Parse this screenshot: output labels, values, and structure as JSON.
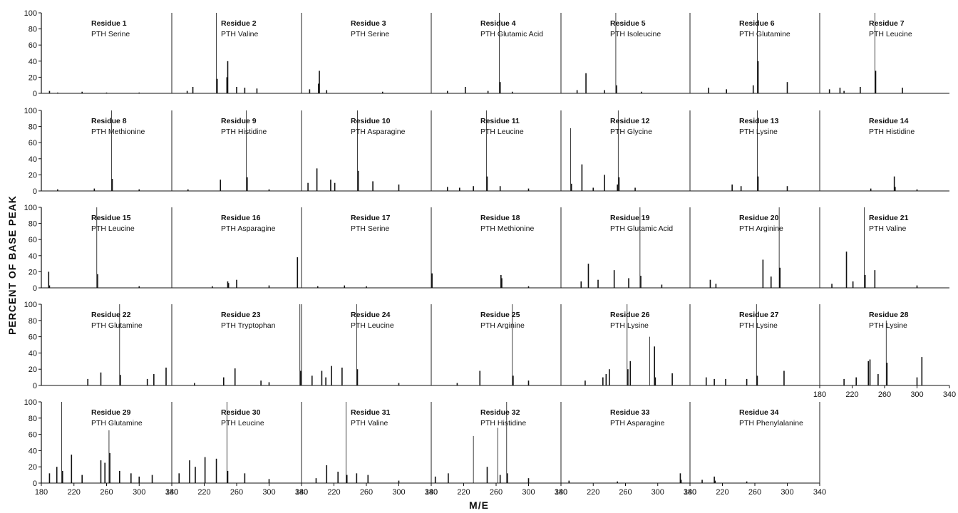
{
  "figure": {
    "ylabel": "PERCENT OF BASE PEAK",
    "xlabel": "M/E",
    "y_ticks": [
      "0",
      "20",
      "40",
      "60",
      "80",
      "100"
    ],
    "x_ticks": [
      "180",
      "220",
      "260",
      "300",
      "340"
    ]
  },
  "chart_data": {
    "type": "bar",
    "xlabel": "M/E",
    "ylabel": "PERCENT OF BASE PEAK",
    "xlim": [
      180,
      340
    ],
    "ylim": [
      0,
      100
    ],
    "grid": false,
    "panels": [
      {
        "residue": "Residue 1",
        "compound": "PTH Serine",
        "peaks": [
          [
            190,
            3
          ],
          [
            200,
            1
          ],
          [
            230,
            2
          ],
          [
            260,
            1
          ],
          [
            300,
            1
          ]
        ]
      },
      {
        "residue": "Residue 2",
        "compound": "PTH Valine",
        "peaks": [
          [
            199,
            3
          ],
          [
            206,
            8
          ],
          [
            235,
            100
          ],
          [
            236,
            18
          ],
          [
            248,
            20
          ],
          [
            249,
            40
          ],
          [
            260,
            8
          ],
          [
            270,
            7
          ],
          [
            285,
            6
          ]
        ]
      },
      {
        "residue": "Residue 3",
        "compound": "PTH Serine",
        "peaks": [
          [
            190,
            5
          ],
          [
            201,
            12
          ],
          [
            202,
            28
          ],
          [
            211,
            4
          ],
          [
            280,
            2
          ]
        ]
      },
      {
        "residue": "Residue 4",
        "compound": "PTH Glutamic Acid",
        "peaks": [
          [
            200,
            3
          ],
          [
            222,
            8
          ],
          [
            250,
            3
          ],
          [
            264,
            100
          ],
          [
            265,
            14
          ],
          [
            280,
            2
          ]
        ]
      },
      {
        "residue": "Residue 5",
        "compound": "PTH Isoleucine",
        "peaks": [
          [
            200,
            4
          ],
          [
            211,
            25
          ],
          [
            234,
            4
          ],
          [
            248,
            100
          ],
          [
            249,
            10
          ],
          [
            280,
            2
          ]
        ]
      },
      {
        "residue": "Residue 6",
        "compound": "PTH Glutamine",
        "peaks": [
          [
            203,
            7
          ],
          [
            225,
            5
          ],
          [
            258,
            10
          ],
          [
            263,
            100
          ],
          [
            264,
            40
          ],
          [
            300,
            14
          ]
        ]
      },
      {
        "residue": "Residue 7",
        "compound": "PTH Leucine",
        "peaks": [
          [
            192,
            5
          ],
          [
            205,
            7
          ],
          [
            210,
            3
          ],
          [
            230,
            8
          ],
          [
            248,
            100
          ],
          [
            249,
            28
          ],
          [
            282,
            7
          ]
        ]
      },
      {
        "residue": "Residue 8",
        "compound": "PTH Methionine",
        "peaks": [
          [
            200,
            2
          ],
          [
            245,
            3
          ],
          [
            266,
            100
          ],
          [
            267,
            15
          ],
          [
            300,
            2
          ]
        ]
      },
      {
        "residue": "Residue 9",
        "compound": "PTH Histidine",
        "peaks": [
          [
            200,
            2
          ],
          [
            240,
            14
          ],
          [
            272,
            100
          ],
          [
            273,
            17
          ],
          [
            300,
            2
          ]
        ]
      },
      {
        "residue": "Residue 10",
        "compound": "PTH Asparagine",
        "peaks": [
          [
            188,
            10
          ],
          [
            199,
            28
          ],
          [
            216,
            14
          ],
          [
            221,
            10
          ],
          [
            249,
            100
          ],
          [
            250,
            25
          ],
          [
            268,
            12
          ],
          [
            300,
            8
          ]
        ]
      },
      {
        "residue": "Residue 11",
        "compound": "PTH Leucine",
        "peaks": [
          [
            200,
            5
          ],
          [
            215,
            4
          ],
          [
            232,
            6
          ],
          [
            248,
            100
          ],
          [
            249,
            18
          ],
          [
            265,
            6
          ],
          [
            300,
            3
          ]
        ]
      },
      {
        "residue": "Residue 12",
        "compound": "PTH Glycine",
        "peaks": [
          [
            192,
            78
          ],
          [
            193,
            9
          ],
          [
            206,
            33
          ],
          [
            220,
            4
          ],
          [
            234,
            20
          ],
          [
            250,
            8
          ],
          [
            251,
            100
          ],
          [
            252,
            17
          ],
          [
            272,
            4
          ]
        ]
      },
      {
        "residue": "Residue 13",
        "compound": "PTH Lysine",
        "peaks": [
          [
            232,
            8
          ],
          [
            243,
            6
          ],
          [
            263,
            100
          ],
          [
            264,
            18
          ],
          [
            300,
            6
          ]
        ]
      },
      {
        "residue": "Residue 14",
        "compound": "PTH Histidine",
        "peaks": [
          [
            243,
            3
          ],
          [
            272,
            18
          ],
          [
            273,
            5
          ],
          [
            300,
            2
          ]
        ]
      },
      {
        "residue": "Residue 15",
        "compound": "PTH Leucine",
        "peaks": [
          [
            189,
            20
          ],
          [
            190,
            3
          ],
          [
            248,
            100
          ],
          [
            249,
            17
          ],
          [
            300,
            2
          ]
        ]
      },
      {
        "residue": "Residue 16",
        "compound": "PTH Asparagine",
        "peaks": [
          [
            230,
            2
          ],
          [
            249,
            8
          ],
          [
            250,
            6
          ],
          [
            260,
            10
          ],
          [
            300,
            3
          ],
          [
            335,
            38
          ]
        ]
      },
      {
        "residue": "Residue 17",
        "compound": "PTH Serine",
        "peaks": [
          [
            200,
            2
          ],
          [
            233,
            3
          ],
          [
            260,
            2
          ]
        ]
      },
      {
        "residue": "Residue 18",
        "compound": "PTH Methionine",
        "peaks": [
          [
            181,
            18
          ],
          [
            266,
            16
          ],
          [
            267,
            12
          ],
          [
            300,
            2
          ]
        ]
      },
      {
        "residue": "Residue 19",
        "compound": "PTH Glutamic Acid",
        "peaks": [
          [
            205,
            8
          ],
          [
            214,
            30
          ],
          [
            226,
            10
          ],
          [
            246,
            22
          ],
          [
            264,
            12
          ],
          [
            278,
            100
          ],
          [
            279,
            15
          ],
          [
            305,
            4
          ]
        ]
      },
      {
        "residue": "Residue 20",
        "compound": "PTH Arginine",
        "peaks": [
          [
            205,
            10
          ],
          [
            212,
            5
          ],
          [
            270,
            35
          ],
          [
            280,
            14
          ],
          [
            290,
            100
          ],
          [
            291,
            25
          ]
        ]
      },
      {
        "residue": "Residue 21",
        "compound": "PTH Valine",
        "peaks": [
          [
            195,
            5
          ],
          [
            213,
            45
          ],
          [
            221,
            8
          ],
          [
            235,
            100
          ],
          [
            236,
            16
          ],
          [
            248,
            22
          ],
          [
            300,
            3
          ]
        ]
      },
      {
        "residue": "Residue 22",
        "compound": "PTH Glutamine",
        "peaks": [
          [
            237,
            8
          ],
          [
            253,
            16
          ],
          [
            276,
            100
          ],
          [
            277,
            13
          ],
          [
            310,
            8
          ],
          [
            318,
            14
          ],
          [
            333,
            22
          ]
        ]
      },
      {
        "residue": "Residue 23",
        "compound": "PTH Tryptophan",
        "peaks": [
          [
            208,
            3
          ],
          [
            244,
            10
          ],
          [
            258,
            21
          ],
          [
            290,
            6
          ],
          [
            300,
            4
          ],
          [
            338,
            100
          ],
          [
            339,
            18
          ]
        ]
      },
      {
        "residue": "Residue 24",
        "compound": "PTH Leucine",
        "peaks": [
          [
            193,
            12
          ],
          [
            205,
            18
          ],
          [
            210,
            10
          ],
          [
            217,
            24
          ],
          [
            230,
            22
          ],
          [
            248,
            100
          ],
          [
            249,
            20
          ],
          [
            300,
            3
          ]
        ]
      },
      {
        "residue": "Residue 25",
        "compound": "PTH Arginine",
        "peaks": [
          [
            212,
            3
          ],
          [
            240,
            18
          ],
          [
            280,
            100
          ],
          [
            281,
            12
          ],
          [
            300,
            6
          ]
        ]
      },
      {
        "residue": "Residue 26",
        "compound": "PTH Lysine",
        "peaks": [
          [
            210,
            6
          ],
          [
            232,
            10
          ],
          [
            236,
            14
          ],
          [
            240,
            20
          ],
          [
            262,
            100
          ],
          [
            263,
            20
          ],
          [
            266,
            30
          ],
          [
            290,
            60
          ],
          [
            296,
            48
          ],
          [
            297,
            10
          ],
          [
            318,
            15
          ]
        ]
      },
      {
        "residue": "Residue 27",
        "compound": "PTH Lysine",
        "peaks": [
          [
            200,
            10
          ],
          [
            210,
            8
          ],
          [
            224,
            8
          ],
          [
            250,
            8
          ],
          [
            262,
            100
          ],
          [
            263,
            12
          ],
          [
            296,
            18
          ]
        ]
      },
      {
        "residue": "Residue 28",
        "compound": "PTH Lysine",
        "peaks": [
          [
            210,
            8
          ],
          [
            225,
            10
          ],
          [
            240,
            30
          ],
          [
            242,
            32
          ],
          [
            252,
            14
          ],
          [
            262,
            80
          ],
          [
            263,
            28
          ],
          [
            300,
            10
          ],
          [
            306,
            35
          ]
        ]
      },
      {
        "residue": "Residue 29",
        "compound": "PTH Glutamine",
        "peaks": [
          [
            190,
            12
          ],
          [
            199,
            20
          ],
          [
            205,
            100
          ],
          [
            206,
            15
          ],
          [
            217,
            35
          ],
          [
            230,
            10
          ],
          [
            253,
            28
          ],
          [
            258,
            25
          ],
          [
            263,
            65
          ],
          [
            264,
            37
          ],
          [
            276,
            15
          ],
          [
            290,
            12
          ],
          [
            300,
            8
          ],
          [
            316,
            10
          ]
        ]
      },
      {
        "residue": "Residue 30",
        "compound": "PTH Leucine",
        "peaks": [
          [
            189,
            12
          ],
          [
            202,
            28
          ],
          [
            209,
            20
          ],
          [
            221,
            32
          ],
          [
            235,
            30
          ],
          [
            248,
            100
          ],
          [
            249,
            15
          ],
          [
            270,
            12
          ],
          [
            300,
            5
          ]
        ]
      },
      {
        "residue": "Residue 31",
        "compound": "PTH Valine",
        "peaks": [
          [
            198,
            6
          ],
          [
            211,
            22
          ],
          [
            225,
            14
          ],
          [
            235,
            100
          ],
          [
            236,
            10
          ],
          [
            248,
            12
          ],
          [
            262,
            10
          ],
          [
            300,
            3
          ]
        ]
      },
      {
        "residue": "Residue 32",
        "compound": "PTH Histidine",
        "peaks": [
          [
            185,
            8
          ],
          [
            201,
            12
          ],
          [
            232,
            58
          ],
          [
            249,
            20
          ],
          [
            262,
            68
          ],
          [
            265,
            10
          ],
          [
            273,
            100
          ],
          [
            274,
            12
          ],
          [
            300,
            6
          ]
        ]
      },
      {
        "residue": "Residue 33",
        "compound": "PTH Asparagine",
        "peaks": [
          [
            190,
            3
          ],
          [
            250,
            2
          ],
          [
            328,
            12
          ],
          [
            329,
            4
          ]
        ]
      },
      {
        "residue": "Residue 34",
        "compound": "PTH Phenylalanine",
        "peaks": [
          [
            195,
            4
          ],
          [
            210,
            8
          ],
          [
            211,
            3
          ],
          [
            250,
            2
          ]
        ]
      }
    ]
  }
}
